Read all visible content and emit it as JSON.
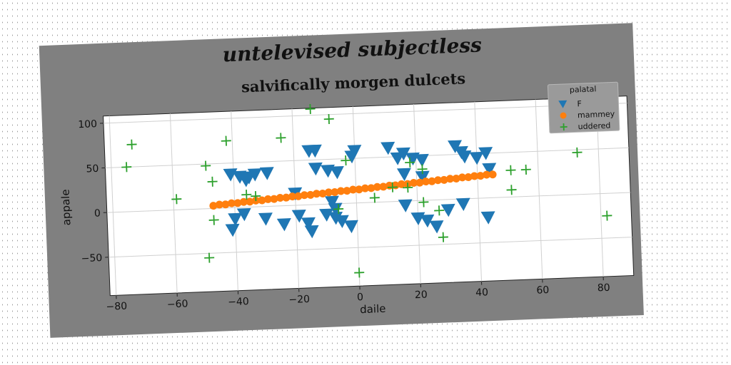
{
  "chart_data": {
    "type": "scatter",
    "suptitle": "untelevised subjectless",
    "title": "salvifically morgen dulcets",
    "xlabel": "daile",
    "ylabel": "appale",
    "xlim": [
      -82,
      90
    ],
    "ylim": [
      -93,
      108
    ],
    "xticks": [
      -80,
      -60,
      -40,
      -20,
      0,
      20,
      40,
      60,
      80
    ],
    "yticks": [
      -50,
      0,
      50,
      100
    ],
    "grid": true,
    "legend": {
      "title": "palatal",
      "placement": "top-right"
    },
    "series": [
      {
        "name": "F",
        "marker": "triangle-down",
        "color": "#1f77b4",
        "points": [
          [
            -41,
            37
          ],
          [
            -38,
            34
          ],
          [
            -36,
            30
          ],
          [
            -35,
            33
          ],
          [
            -33,
            36
          ],
          [
            -29,
            37
          ],
          [
            -37,
            -8
          ],
          [
            -40,
            -13
          ],
          [
            -41,
            -25
          ],
          [
            -30,
            -14
          ],
          [
            -24,
            -21
          ],
          [
            -19,
            -12
          ],
          [
            -16,
            -21
          ],
          [
            -15,
            -30
          ],
          [
            -15,
            60
          ],
          [
            -13,
            60
          ],
          [
            -13,
            40
          ],
          [
            -9,
            37
          ],
          [
            -6,
            35
          ],
          [
            -8,
            2
          ],
          [
            -7,
            -6
          ],
          [
            -10,
            -12
          ],
          [
            -7,
            -16
          ],
          [
            -5,
            -20
          ],
          [
            -2,
            -26
          ],
          [
            -1,
            52
          ],
          [
            0,
            58
          ],
          [
            11,
            60
          ],
          [
            14,
            48
          ],
          [
            16,
            53
          ],
          [
            16,
            30
          ],
          [
            19,
            47
          ],
          [
            22,
            45
          ],
          [
            22,
            26
          ],
          [
            16,
            -5
          ],
          [
            20,
            -20
          ],
          [
            23,
            -23
          ],
          [
            26,
            -30
          ],
          [
            30,
            -12
          ],
          [
            33,
            59
          ],
          [
            35,
            52
          ],
          [
            36,
            47
          ],
          [
            40,
            45
          ],
          [
            43,
            50
          ],
          [
            44,
            32
          ],
          [
            43,
            -22
          ],
          [
            35,
            -6
          ],
          [
            -20,
            13
          ]
        ]
      },
      {
        "name": "mammey",
        "marker": "circle",
        "color": "#ff7f0e",
        "points": [
          [
            -47,
            3
          ],
          [
            -45,
            4
          ],
          [
            -43,
            4
          ],
          [
            -41,
            5
          ],
          [
            -39,
            5
          ],
          [
            -37,
            6
          ],
          [
            -35,
            6
          ],
          [
            -33,
            7
          ],
          [
            -31,
            7
          ],
          [
            -29,
            8
          ],
          [
            -27,
            8
          ],
          [
            -25,
            9
          ],
          [
            -23,
            9
          ],
          [
            -21,
            10
          ],
          [
            -19,
            10
          ],
          [
            -17,
            11
          ],
          [
            -15,
            11
          ],
          [
            -13,
            12
          ],
          [
            -11,
            12
          ],
          [
            -9,
            13
          ],
          [
            -7,
            13
          ],
          [
            -5,
            14
          ],
          [
            -3,
            14
          ],
          [
            -1,
            15
          ],
          [
            1,
            15
          ],
          [
            3,
            16
          ],
          [
            5,
            16
          ],
          [
            7,
            17
          ],
          [
            9,
            17
          ],
          [
            11,
            18
          ],
          [
            13,
            18
          ],
          [
            15,
            19
          ],
          [
            17,
            19
          ],
          [
            19,
            20
          ],
          [
            21,
            20
          ],
          [
            23,
            21
          ],
          [
            25,
            21
          ],
          [
            27,
            22
          ],
          [
            29,
            22
          ],
          [
            31,
            23
          ],
          [
            33,
            23
          ],
          [
            35,
            24
          ],
          [
            37,
            24
          ],
          [
            39,
            25
          ],
          [
            41,
            25
          ],
          [
            43,
            26
          ],
          [
            45,
            26
          ]
        ]
      },
      {
        "name": "uddered",
        "marker": "plus",
        "color": "#2ca02c",
        "points": [
          [
            -73,
            75
          ],
          [
            -75,
            50
          ],
          [
            -59,
            12
          ],
          [
            -49,
            48
          ],
          [
            -47,
            30
          ],
          [
            -47,
            -13
          ],
          [
            -49,
            -55
          ],
          [
            -42,
            75
          ],
          [
            -36,
            14
          ],
          [
            -33,
            12
          ],
          [
            -24,
            76
          ],
          [
            -14,
            107
          ],
          [
            -8,
            95
          ],
          [
            -3,
            48
          ],
          [
            -6,
            -6
          ],
          [
            0,
            -78
          ],
          [
            6,
            5
          ],
          [
            12,
            16
          ],
          [
            17,
            15
          ],
          [
            22,
            35
          ],
          [
            22,
            -2
          ],
          [
            27,
            -12
          ],
          [
            28,
            -42
          ],
          [
            51,
            30
          ],
          [
            56,
            30
          ],
          [
            51,
            8
          ],
          [
            73,
            47
          ],
          [
            82,
            -25
          ],
          [
            18,
            43
          ]
        ]
      }
    ]
  }
}
